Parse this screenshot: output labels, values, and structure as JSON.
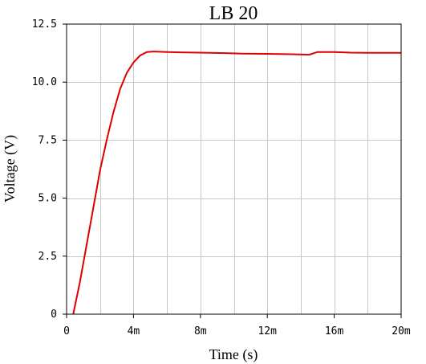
{
  "chart_data": {
    "type": "line",
    "title": "LB 20",
    "xlabel": "Time (s)",
    "ylabel": "Voltage (V)",
    "xlim": [
      0,
      0.02
    ],
    "ylim": [
      0,
      12.5
    ],
    "grid": true,
    "x_ticks": [
      {
        "value": 0,
        "label": "0"
      },
      {
        "value": 0.004,
        "label": "4m"
      },
      {
        "value": 0.008,
        "label": "8m"
      },
      {
        "value": 0.012,
        "label": "12m"
      },
      {
        "value": 0.016,
        "label": "16m"
      },
      {
        "value": 0.02,
        "label": "20m"
      }
    ],
    "x_grid": [
      0.002,
      0.004,
      0.006,
      0.008,
      0.01,
      0.012,
      0.014,
      0.016,
      0.018
    ],
    "y_ticks": [
      {
        "value": 0,
        "label": "0"
      },
      {
        "value": 2.5,
        "label": "2.5"
      },
      {
        "value": 5.0,
        "label": "5.0"
      },
      {
        "value": 7.5,
        "label": "7.5"
      },
      {
        "value": 10.0,
        "label": "10.0"
      },
      {
        "value": 12.5,
        "label": "12.5"
      }
    ],
    "series": [
      {
        "color": "#dd0000",
        "x": [
          0.0004,
          0.0008,
          0.0012,
          0.0016,
          0.002,
          0.0024,
          0.0028,
          0.0032,
          0.0036,
          0.004,
          0.0044,
          0.0048,
          0.0052,
          0.006,
          0.007,
          0.008,
          0.0095,
          0.0105,
          0.012,
          0.0135,
          0.0145,
          0.015,
          0.016,
          0.017,
          0.018,
          0.019,
          0.02
        ],
        "y": [
          0.0,
          1.4,
          3.0,
          4.6,
          6.2,
          7.5,
          8.7,
          9.7,
          10.4,
          10.85,
          11.15,
          11.3,
          11.32,
          11.3,
          11.28,
          11.27,
          11.25,
          11.23,
          11.22,
          11.2,
          11.18,
          11.3,
          11.3,
          11.27,
          11.26,
          11.26,
          11.26
        ]
      }
    ]
  }
}
